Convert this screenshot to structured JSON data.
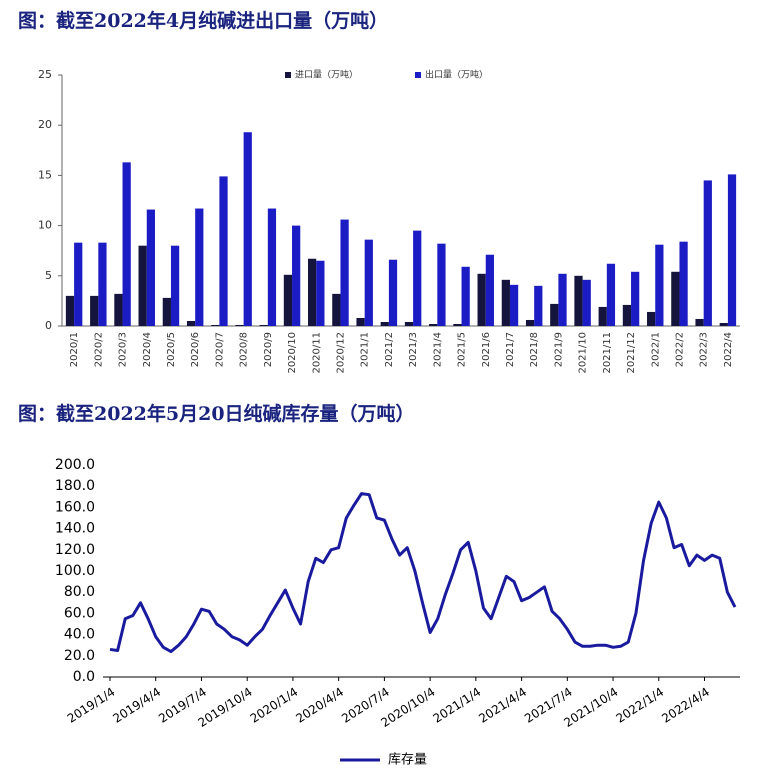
{
  "chart_data": [
    {
      "type": "bar",
      "title": "图：截至2022年4月纯碱进出口量（万吨）",
      "categories": [
        "2020/1",
        "2020/2",
        "2020/3",
        "2020/4",
        "2020/5",
        "2020/6",
        "2020/7",
        "2020/8",
        "2020/9",
        "2020/10",
        "2020/11",
        "2020/12",
        "2021/1",
        "2021/2",
        "2021/3",
        "2021/4",
        "2021/5",
        "2021/6",
        "2021/7",
        "2021/8",
        "2021/9",
        "2021/10",
        "2021/11",
        "2021/12",
        "2022/1",
        "2022/2",
        "2022/3",
        "2022/4"
      ],
      "series": [
        {
          "name": "进口量（万吨）",
          "color": "#14143c",
          "values": [
            3.0,
            3.0,
            3.2,
            8.0,
            2.8,
            0.5,
            0.1,
            0.1,
            0.1,
            5.1,
            6.7,
            3.2,
            0.8,
            0.4,
            0.4,
            0.2,
            0.2,
            5.2,
            4.6,
            0.6,
            2.2,
            5.0,
            1.9,
            2.1,
            1.4,
            5.4,
            0.7,
            0.3
          ]
        },
        {
          "name": "出口量（万吨）",
          "color": "#1c1cc4",
          "values": [
            8.3,
            8.3,
            16.3,
            11.6,
            8.0,
            11.7,
            14.9,
            19.3,
            11.7,
            10.0,
            6.5,
            10.6,
            8.6,
            6.6,
            9.5,
            8.2,
            5.9,
            7.1,
            4.1,
            4.0,
            5.2,
            4.6,
            6.2,
            5.4,
            8.1,
            8.4,
            14.5,
            15.1
          ]
        }
      ],
      "ylim": [
        0,
        25
      ],
      "yticks": [
        0,
        5,
        10,
        15,
        20,
        25
      ],
      "legend": "top"
    },
    {
      "type": "line",
      "title": "图：截至2022年5月20日纯碱库存量（万吨）",
      "categories": [
        "2019/1/4",
        null,
        null,
        null,
        null,
        null,
        "2019/4/4",
        null,
        null,
        null,
        null,
        null,
        "2019/7/4",
        null,
        null,
        null,
        null,
        null,
        "2019/10/4",
        null,
        null,
        null,
        null,
        null,
        "2020/1/4",
        null,
        null,
        null,
        null,
        null,
        "2020/4/4",
        null,
        null,
        null,
        null,
        null,
        "2020/7/4",
        null,
        null,
        null,
        null,
        null,
        "2020/10/4",
        null,
        null,
        null,
        null,
        null,
        "2021/1/4",
        null,
        null,
        null,
        null,
        null,
        "2021/4/4",
        null,
        null,
        null,
        null,
        null,
        "2021/7/4",
        null,
        null,
        null,
        null,
        null,
        "2021/10/4",
        null,
        null,
        null,
        null,
        null,
        "2022/1/4",
        null,
        null,
        null,
        null,
        null,
        "2022/4/4",
        null,
        null,
        null,
        null
      ],
      "series": [
        {
          "name": "库存量",
          "color": "#1a1a9e",
          "values": [
            26,
            25,
            55,
            58,
            70,
            55,
            38,
            28,
            24,
            30,
            38,
            50,
            64,
            62,
            50,
            45,
            38,
            35,
            30,
            38,
            45,
            58,
            70,
            82,
            65,
            50,
            90,
            112,
            108,
            120,
            122,
            150,
            162,
            173,
            172,
            150,
            148,
            130,
            115,
            122,
            100,
            70,
            42,
            55,
            78,
            98,
            120,
            127,
            100,
            65,
            55,
            75,
            95,
            90,
            72,
            75,
            80,
            85,
            62,
            55,
            45,
            33,
            29,
            29,
            30,
            30,
            28,
            29,
            33,
            60,
            110,
            145,
            165,
            150,
            122,
            125,
            105,
            115,
            110,
            115,
            112,
            80,
            66
          ]
        }
      ],
      "ylim": [
        0,
        200
      ],
      "yticks": [
        {
          "value": 0,
          "label": "0.0"
        },
        {
          "value": 20,
          "label": "20.0"
        },
        {
          "value": 40,
          "label": "40.0"
        },
        {
          "value": 60,
          "label": "60.0"
        },
        {
          "value": 80,
          "label": "80.0"
        },
        {
          "value": 100,
          "label": "100.0"
        },
        {
          "value": 120,
          "label": "120.0"
        },
        {
          "value": 140,
          "label": "140.0"
        },
        {
          "value": 160,
          "label": "160.0"
        },
        {
          "value": 180,
          "label": "180.0"
        },
        {
          "value": 200,
          "label": "200.0"
        }
      ],
      "legend": "bottom"
    }
  ]
}
